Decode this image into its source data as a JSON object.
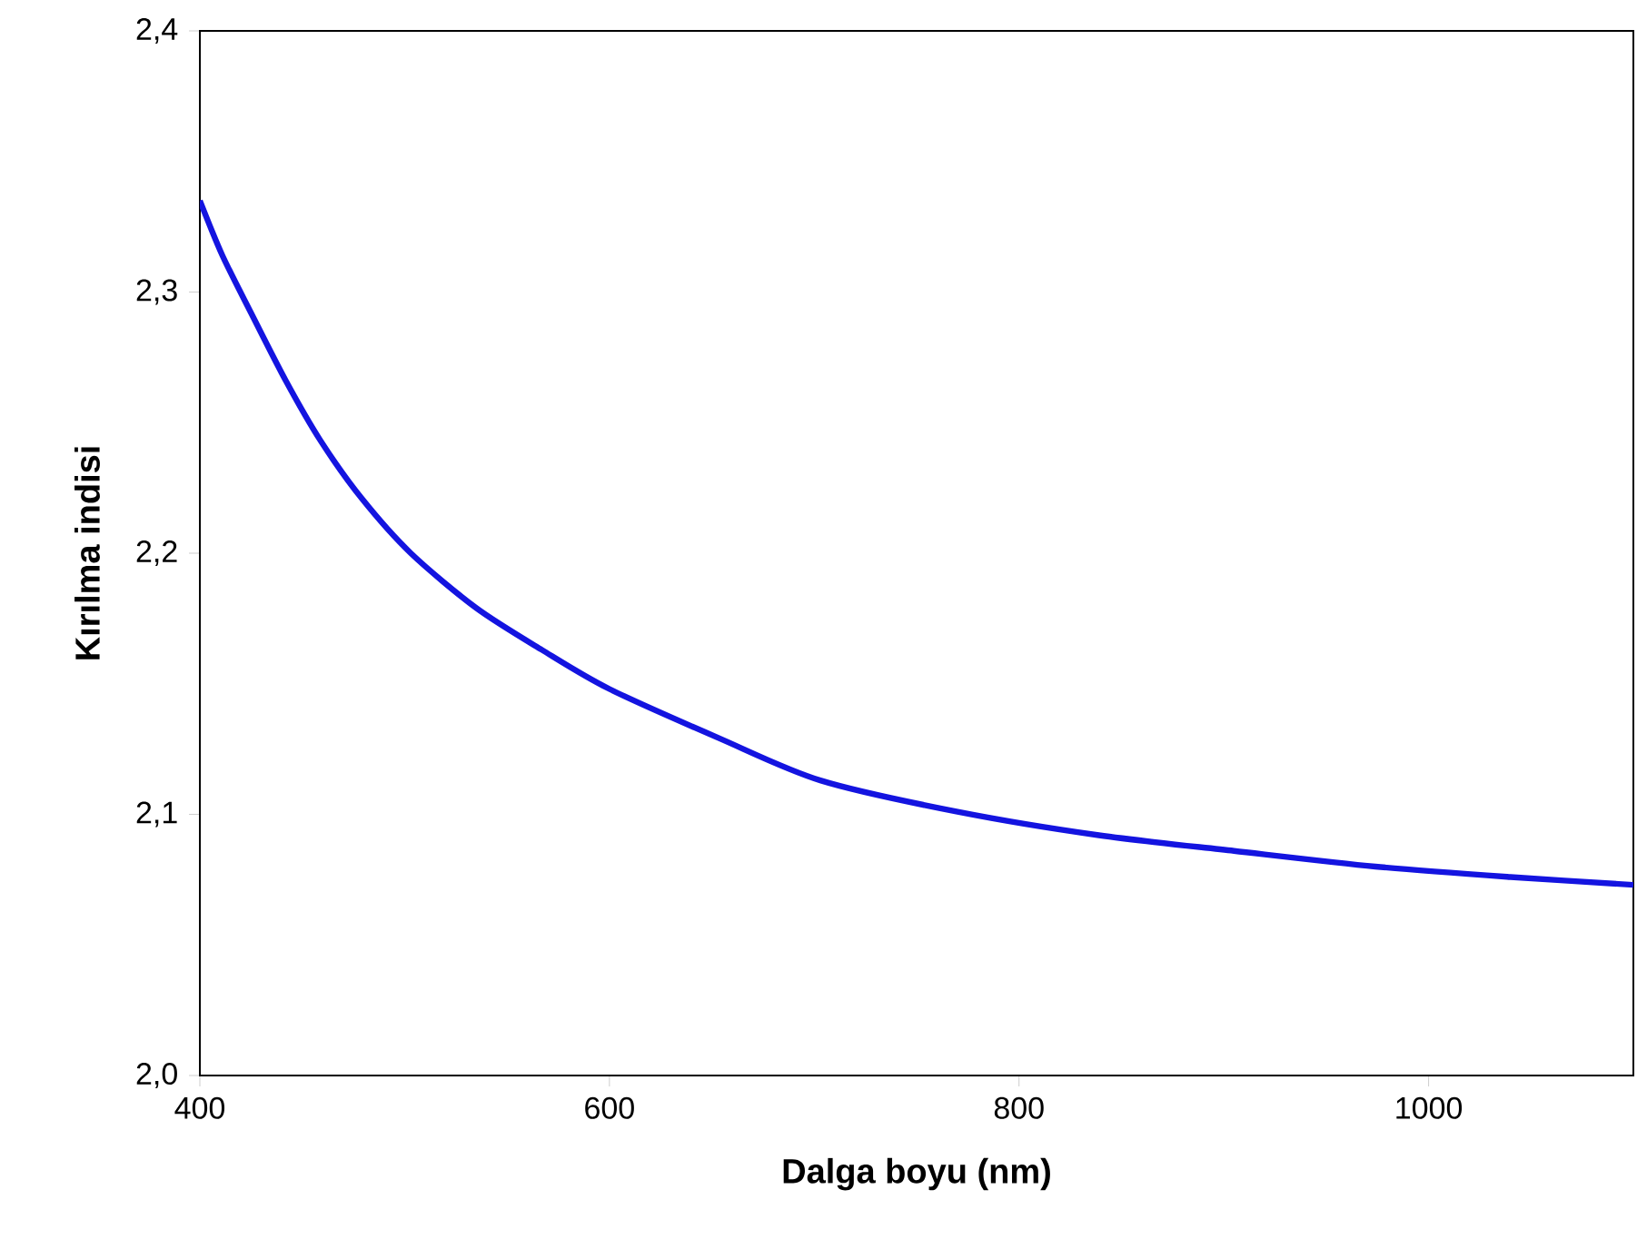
{
  "chart_data": {
    "type": "line",
    "xlabel": "Dalga boyu (nm)",
    "ylabel": "Kırılma indisi",
    "x": [
      400,
      411,
      425,
      442,
      459,
      479,
      503,
      535,
      567,
      600,
      654,
      703,
      770,
      839,
      905,
      974,
      1040,
      1100
    ],
    "series": [
      {
        "color": "#1414e0",
        "values": [
          2.335,
          2.314,
          2.292,
          2.266,
          2.243,
          2.221,
          2.2,
          2.179,
          2.163,
          2.148,
          2.129,
          2.113,
          2.101,
          2.092,
          2.086,
          2.08,
          2.076,
          2.073
        ]
      }
    ],
    "xlim": [
      400,
      1100
    ],
    "ylim": [
      2.0,
      2.4
    ],
    "xticks": [
      400,
      600,
      800,
      1000
    ],
    "yticks": [
      {
        "value": 2.0,
        "label": "2,0"
      },
      {
        "value": 2.1,
        "label": "2,1"
      },
      {
        "value": 2.2,
        "label": "2,2"
      },
      {
        "value": 2.3,
        "label": "2,3"
      },
      {
        "value": 2.4,
        "label": "2,4"
      }
    ],
    "line_style": "solid"
  }
}
